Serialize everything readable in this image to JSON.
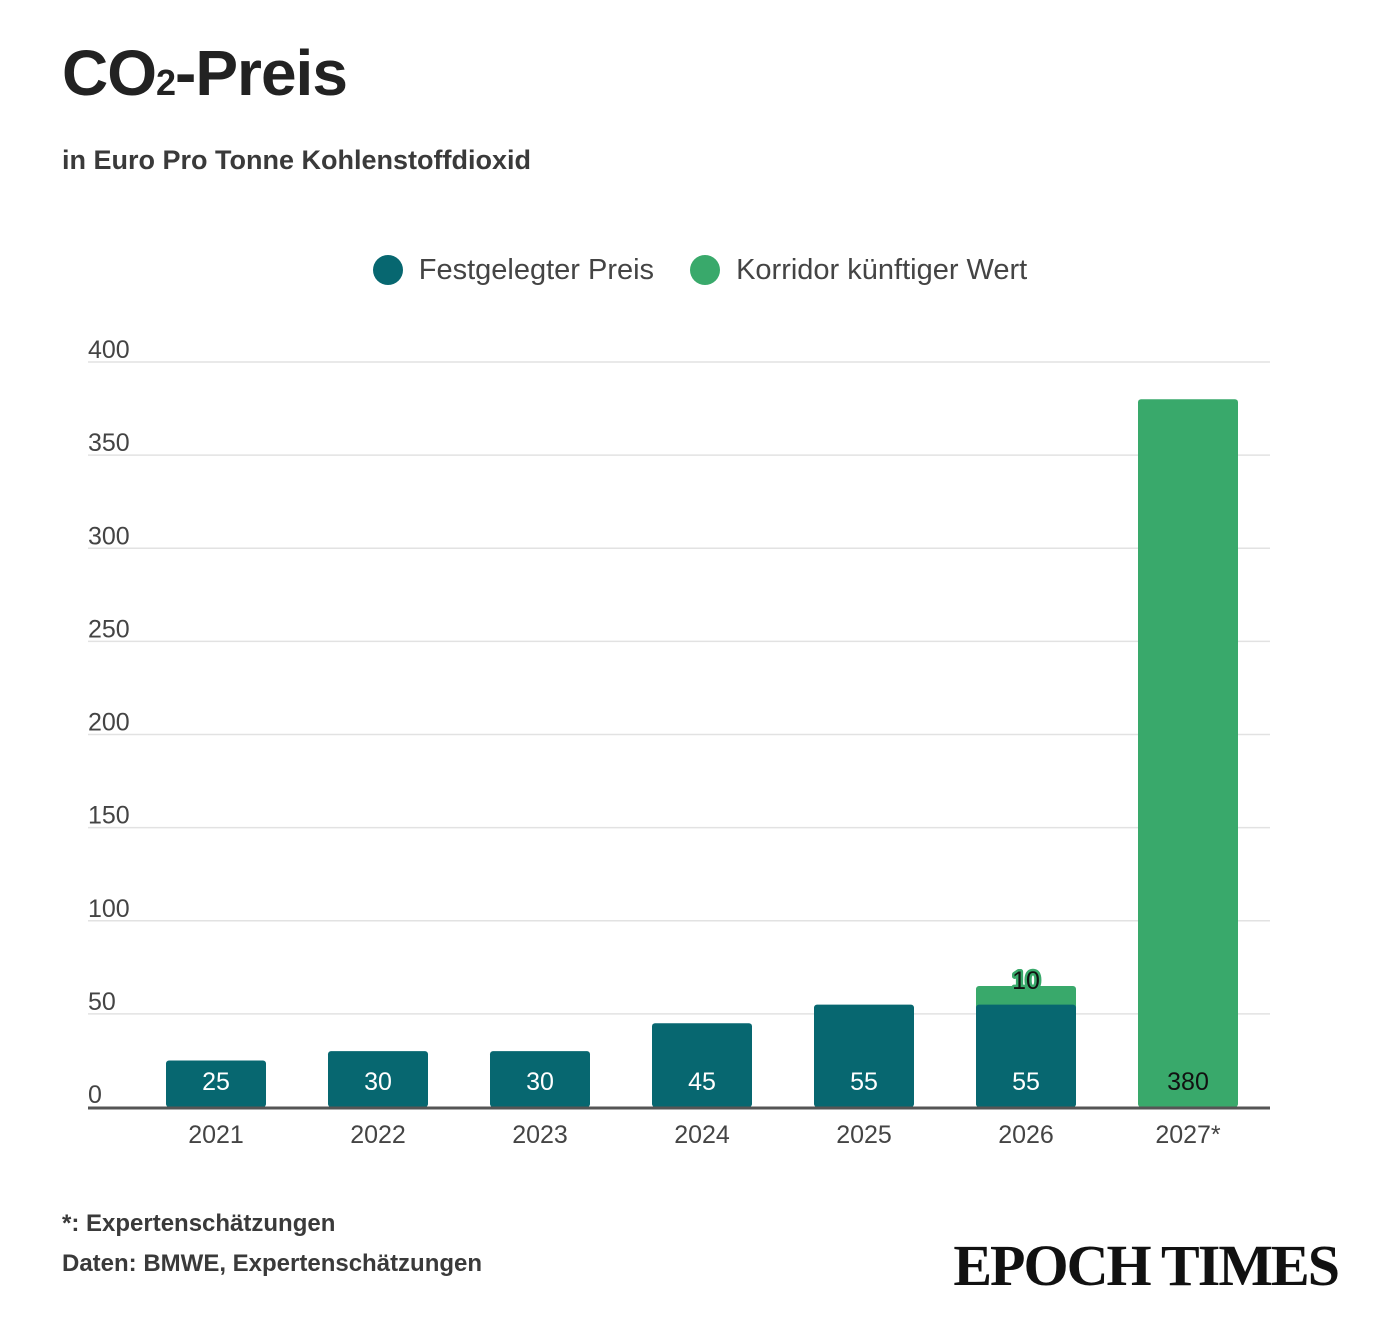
{
  "title": {
    "main": "CO",
    "sub": "2",
    "rest": "-Preis"
  },
  "subtitle": "in Euro Pro Tonne Kohlenstoffdioxid",
  "colors": {
    "fixed": "#076770",
    "corridor": "#39a96b",
    "grid": "#e2e2e2",
    "axis": "#555555"
  },
  "legend": [
    {
      "label": "Festgelegter Preis",
      "color": "#076770"
    },
    {
      "label": "Korridor künftiger Wert",
      "color": "#39a96b"
    }
  ],
  "chart_data": {
    "type": "bar",
    "stacked": true,
    "categories": [
      "2021",
      "2022",
      "2023",
      "2024",
      "2025",
      "2026",
      "2027*"
    ],
    "series": [
      {
        "name": "Festgelegter Preis",
        "values": [
          25,
          30,
          30,
          45,
          55,
          55,
          0
        ]
      },
      {
        "name": "Korridor künftiger Wert",
        "values": [
          0,
          0,
          0,
          0,
          0,
          10,
          380
        ]
      }
    ],
    "data_labels": {
      "Festgelegter Preis": [
        "25",
        "30",
        "30",
        "45",
        "55",
        "55",
        ""
      ],
      "Korridor künftiger Wert": [
        "",
        "",
        "",
        "",
        "",
        "10",
        "380"
      ]
    },
    "yticks": [
      0,
      50,
      100,
      150,
      200,
      250,
      300,
      350,
      400
    ],
    "ylim": [
      0,
      400
    ],
    "grid": true,
    "legend_position": "top-center"
  },
  "footnote": "*: Expertenschätzungen",
  "source": "Daten: BMWE, Expertenschätzungen",
  "logo": "EPOCH TIMES"
}
